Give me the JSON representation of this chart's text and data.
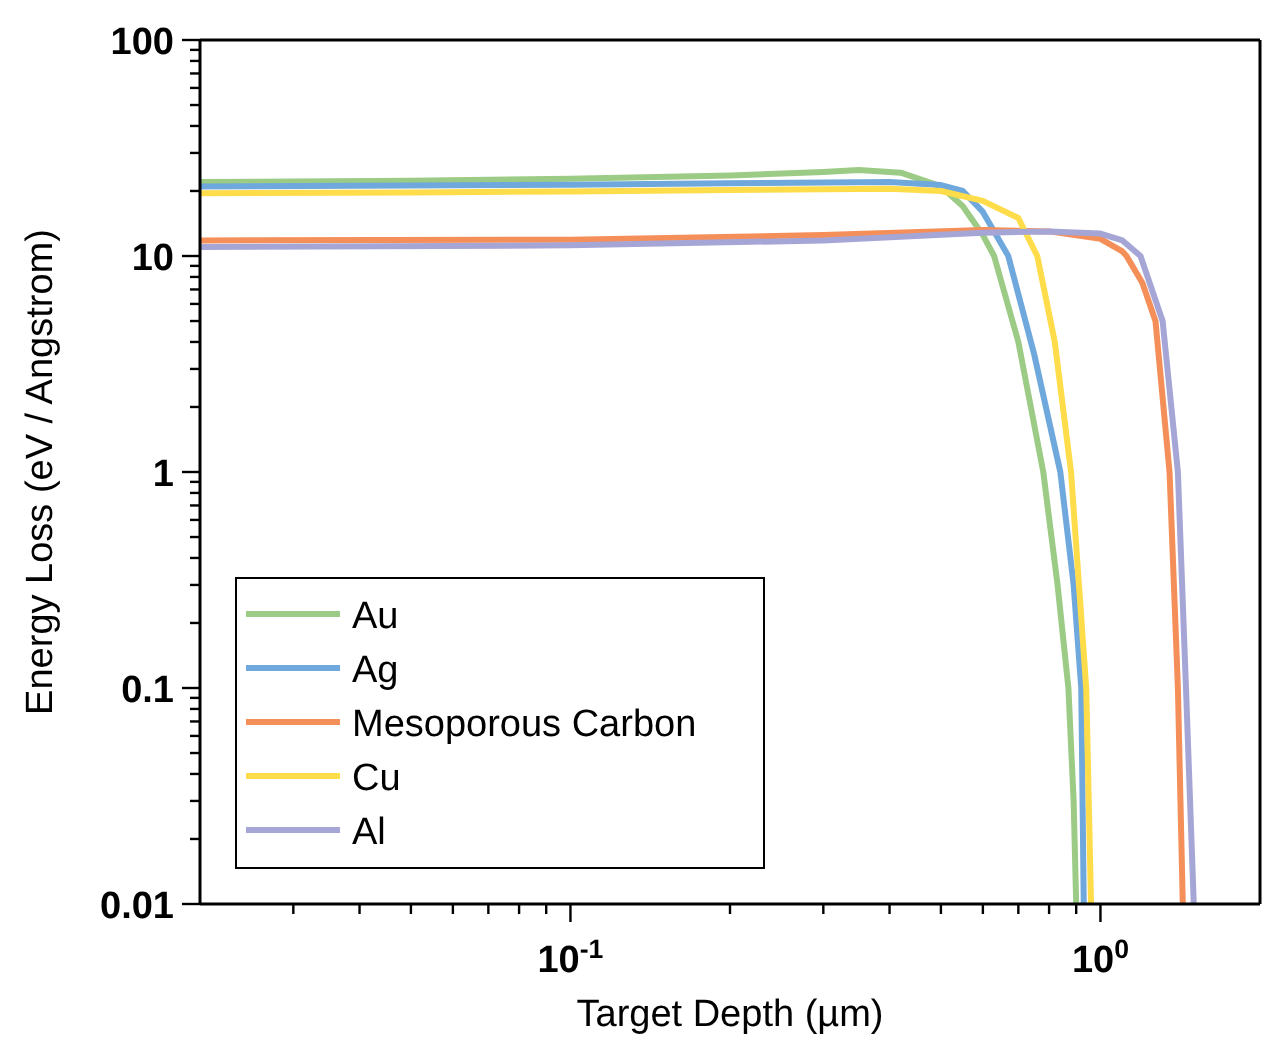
{
  "chart_data": {
    "type": "line",
    "xlabel": "Target Depth (µm)",
    "ylabel": "Energy Loss (eV / Angstrom)",
    "log": "xy",
    "legend": "bottom left",
    "line_style": "solid",
    "marker": "none",
    "xlim": [
      0.02,
      2
    ],
    "ylim": [
      0.01,
      100
    ],
    "xticks": [
      {
        "value": 0.03,
        "label": null
      },
      {
        "value": 0.04,
        "label": null
      },
      {
        "value": 0.05,
        "label": null
      },
      {
        "value": 0.06,
        "label": null
      },
      {
        "value": 0.07,
        "label": null
      },
      {
        "value": 0.08,
        "label": null
      },
      {
        "value": 0.09,
        "label": null
      },
      {
        "value": 0.1,
        "label": "10$^{-1}$"
      },
      {
        "value": 0.2,
        "label": null
      },
      {
        "value": 0.3,
        "label": null
      },
      {
        "value": 0.4,
        "label": null
      },
      {
        "value": 0.5,
        "label": null
      },
      {
        "value": 0.6,
        "label": null
      },
      {
        "value": 0.7,
        "label": null
      },
      {
        "value": 0.8,
        "label": null
      },
      {
        "value": 0.9,
        "label": null
      },
      {
        "value": 1,
        "label": "10$^{0}$"
      }
    ],
    "yticks": [
      0.01,
      {
        "value": 0.02,
        "label": null
      },
      {
        "value": 0.03,
        "label": null
      },
      {
        "value": 0.04,
        "label": null
      },
      {
        "value": 0.05,
        "label": null
      },
      {
        "value": 0.06,
        "label": null
      },
      {
        "value": 0.07,
        "label": null
      },
      {
        "value": 0.08,
        "label": null
      },
      {
        "value": 0.09,
        "label": null
      },
      0.1,
      {
        "value": 0.2,
        "label": null
      },
      {
        "value": 0.3,
        "label": null
      },
      {
        "value": 0.4,
        "label": null
      },
      {
        "value": 0.5,
        "label": null
      },
      {
        "value": 0.6,
        "label": null
      },
      {
        "value": 0.7,
        "label": null
      },
      {
        "value": 0.8,
        "label": null
      },
      {
        "value": 0.9,
        "label": null
      },
      1,
      {
        "value": 2,
        "label": null
      },
      {
        "value": 3,
        "label": null
      },
      {
        "value": 4,
        "label": null
      },
      {
        "value": 5,
        "label": null
      },
      {
        "value": 6,
        "label": null
      },
      {
        "value": 7,
        "label": null
      },
      {
        "value": 8,
        "label": null
      },
      {
        "value": 9,
        "label": null
      },
      10,
      {
        "value": 20,
        "label": null
      },
      {
        "value": 30,
        "label": null
      },
      {
        "value": 40,
        "label": null
      },
      {
        "value": 50,
        "label": null
      },
      {
        "value": 60,
        "label": null
      },
      {
        "value": 70,
        "label": null
      },
      {
        "value": 80,
        "label": null
      },
      {
        "value": 90,
        "label": null
      },
      100
    ],
    "series": [
      {
        "name": "Au",
        "color": "#9ccb86",
        "x": [
          0.02,
          0.05,
          0.1,
          0.2,
          0.3,
          0.35,
          0.42,
          0.5,
          0.55,
          0.6,
          0.63,
          0.7,
          0.78,
          0.83,
          0.87,
          0.89,
          0.9
        ],
        "values": [
          22,
          22.3,
          22.8,
          23.6,
          24.5,
          25,
          24.3,
          21,
          17,
          12.5,
          10,
          4,
          1,
          0.3,
          0.1,
          0.03,
          0.01
        ]
      },
      {
        "name": "Ag",
        "color": "#6fa8dc",
        "x": [
          0.02,
          0.05,
          0.1,
          0.2,
          0.4,
          0.5,
          0.55,
          0.6,
          0.67,
          0.75,
          0.84,
          0.89,
          0.92,
          0.93
        ],
        "values": [
          21,
          21.2,
          21.4,
          21.7,
          22,
          21.3,
          20,
          16,
          10,
          3.5,
          1,
          0.3,
          0.1,
          0.01
        ]
      },
      {
        "name": "Mesoporous Carbon",
        "color": "#f58f5a",
        "x": [
          0.02,
          0.1,
          0.3,
          0.6,
          0.8,
          1.0,
          1.1,
          1.12,
          1.2,
          1.27,
          1.35,
          1.4,
          1.43
        ],
        "values": [
          11.8,
          11.9,
          12.5,
          13.2,
          13,
          12,
          10.5,
          10,
          7.5,
          5,
          1,
          0.1,
          0.01
        ]
      },
      {
        "name": "Cu",
        "color": "#ffdc4a",
        "x": [
          0.02,
          0.05,
          0.1,
          0.2,
          0.4,
          0.5,
          0.6,
          0.7,
          0.76,
          0.82,
          0.88,
          0.94,
          0.96
        ],
        "values": [
          19.5,
          19.7,
          19.9,
          20.2,
          20.5,
          20,
          18,
          15,
          10,
          4,
          1,
          0.1,
          0.01
        ]
      },
      {
        "name": "Al",
        "color": "#a6a6d6",
        "x": [
          0.02,
          0.1,
          0.3,
          0.6,
          0.8,
          1.0,
          1.1,
          1.19,
          1.31,
          1.4,
          1.45,
          1.5
        ],
        "values": [
          11,
          11.2,
          11.8,
          12.8,
          13,
          12.7,
          11.8,
          10,
          5,
          1,
          0.1,
          0.01
        ]
      }
    ]
  }
}
